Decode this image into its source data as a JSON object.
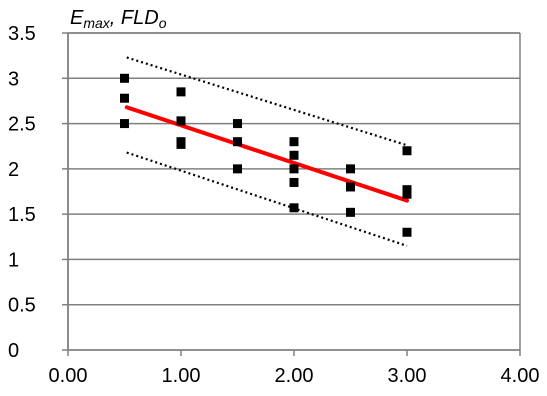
{
  "chart_data": {
    "type": "scatter",
    "ylabel_parts": [
      "E",
      "max",
      ", FLD",
      "o"
    ],
    "xlim": [
      0,
      4
    ],
    "ylim": [
      0,
      3.5
    ],
    "x_ticks": [
      "0.00",
      "1.00",
      "2.00",
      "3.00",
      "4.00"
    ],
    "y_ticks": [
      "0",
      "0.5",
      "1",
      "1.5",
      "2",
      "2.5",
      "3",
      "3.5"
    ],
    "grid": "horizontal",
    "points": [
      {
        "x": 0.5,
        "y": 3.0
      },
      {
        "x": 0.5,
        "y": 2.78
      },
      {
        "x": 0.5,
        "y": 2.5
      },
      {
        "x": 1.0,
        "y": 2.85
      },
      {
        "x": 1.0,
        "y": 2.53
      },
      {
        "x": 1.0,
        "y": 2.3
      },
      {
        "x": 1.0,
        "y": 2.27
      },
      {
        "x": 1.5,
        "y": 2.5
      },
      {
        "x": 1.5,
        "y": 2.3
      },
      {
        "x": 1.5,
        "y": 2.0
      },
      {
        "x": 2.0,
        "y": 2.3
      },
      {
        "x": 2.0,
        "y": 2.15
      },
      {
        "x": 2.0,
        "y": 2.0
      },
      {
        "x": 2.0,
        "y": 1.85
      },
      {
        "x": 2.0,
        "y": 1.57
      },
      {
        "x": 2.5,
        "y": 2.0
      },
      {
        "x": 2.5,
        "y": 1.8
      },
      {
        "x": 2.5,
        "y": 1.52
      },
      {
        "x": 3.0,
        "y": 2.2
      },
      {
        "x": 3.0,
        "y": 1.77
      },
      {
        "x": 3.0,
        "y": 1.72
      },
      {
        "x": 3.0,
        "y": 1.3
      }
    ],
    "trend_line": {
      "x": [
        0.52,
        3.0
      ],
      "y": [
        2.68,
        1.65
      ],
      "color": "#ff0000"
    },
    "bound_upper": {
      "x": [
        0.52,
        3.0
      ],
      "y": [
        3.23,
        2.26
      ]
    },
    "bound_lower": {
      "x": [
        0.52,
        3.0
      ],
      "y": [
        2.18,
        1.15
      ]
    },
    "colors": {
      "axes": "#808080",
      "grid": "#808080",
      "point": "#000000",
      "trend": "#ff0000",
      "bounds": "#000000"
    }
  }
}
